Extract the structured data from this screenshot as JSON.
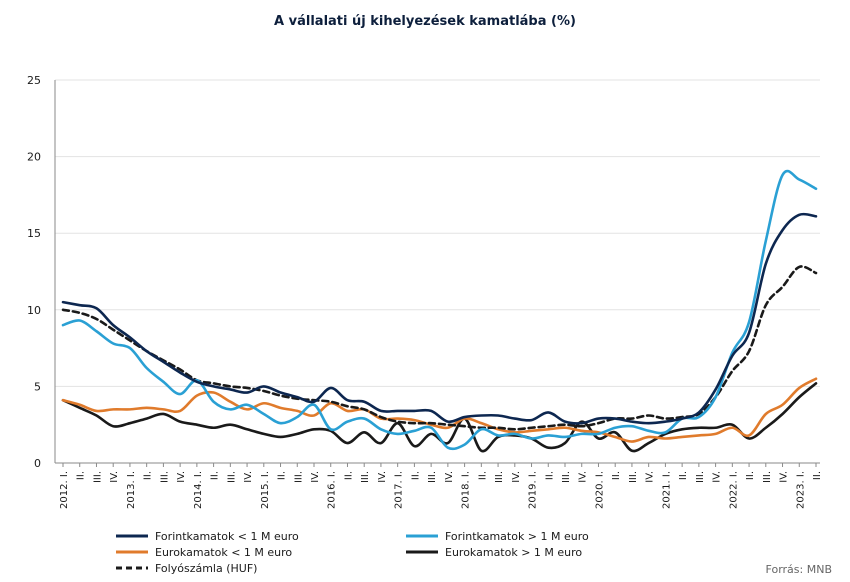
{
  "title": "A vállalati új kihelyezések kamatlába (%)",
  "source": "Forrás: MNB",
  "chart_data": {
    "type": "line",
    "title": "A vállalati új kihelyezések kamatlába (%)",
    "ylim": [
      0,
      25
    ],
    "y_ticks": [
      0,
      5,
      10,
      15,
      20,
      25
    ],
    "grid": true,
    "legend_position": "bottom",
    "x": [
      "2012. I.",
      "II.",
      "III.",
      "IV.",
      "2013. I.",
      "II.",
      "III.",
      "IV.",
      "2014. I.",
      "II.",
      "III.",
      "IV.",
      "2015. I.",
      "II.",
      "III.",
      "IV.",
      "2016. I.",
      "II.",
      "III.",
      "IV.",
      "2017. I.",
      "II.",
      "III.",
      "IV.",
      "2018. I.",
      "II.",
      "III.",
      "IV.",
      "2019. I.",
      "II.",
      "III.",
      "IV.",
      "2020. I.",
      "II.",
      "III.",
      "IV.",
      "2021. I.",
      "II.",
      "III.",
      "IV.",
      "2022. I.",
      "II.",
      "III.",
      "IV.",
      "2023. I.",
      "II."
    ],
    "series": [
      {
        "name": "Forintkamatok < 1 M euro",
        "color": "#0d2750",
        "dash": false,
        "values": [
          10.5,
          10.3,
          10.1,
          9.0,
          8.2,
          7.3,
          6.6,
          5.9,
          5.3,
          5.0,
          4.8,
          4.6,
          5.0,
          4.6,
          4.3,
          4.0,
          4.9,
          4.1,
          4.0,
          3.4,
          3.4,
          3.4,
          3.4,
          2.7,
          3.0,
          3.1,
          3.1,
          2.9,
          2.8,
          3.3,
          2.7,
          2.6,
          2.9,
          2.9,
          2.7,
          2.6,
          2.7,
          2.9,
          3.3,
          4.8,
          7.0,
          8.5,
          13.0,
          15.2,
          16.2,
          16.1
        ]
      },
      {
        "name": "Forintkamatok > 1 M euro",
        "color": "#2aa0d4",
        "dash": false,
        "values": [
          9.0,
          9.3,
          8.6,
          7.8,
          7.5,
          6.2,
          5.3,
          4.5,
          5.4,
          4.0,
          3.5,
          3.8,
          3.2,
          2.6,
          3.0,
          3.8,
          2.2,
          2.7,
          2.9,
          2.2,
          1.9,
          2.1,
          2.3,
          1.0,
          1.2,
          2.2,
          1.8,
          1.9,
          1.6,
          1.8,
          1.7,
          1.9,
          1.9,
          2.3,
          2.4,
          2.1,
          2.0,
          2.9,
          3.0,
          4.3,
          7.2,
          9.2,
          14.5,
          18.8,
          18.5,
          17.9
        ]
      },
      {
        "name": "Eurokamatok < 1 M euro",
        "color": "#e07b2c",
        "dash": false,
        "values": [
          4.1,
          3.8,
          3.4,
          3.5,
          3.5,
          3.6,
          3.5,
          3.4,
          4.4,
          4.6,
          4.0,
          3.5,
          3.9,
          3.6,
          3.4,
          3.1,
          3.9,
          3.4,
          3.5,
          2.9,
          2.9,
          2.8,
          2.5,
          2.3,
          2.9,
          2.6,
          2.2,
          2.0,
          2.1,
          2.2,
          2.3,
          2.1,
          2.0,
          1.7,
          1.4,
          1.7,
          1.6,
          1.7,
          1.8,
          1.9,
          2.3,
          1.8,
          3.2,
          3.8,
          4.9,
          5.5
        ]
      },
      {
        "name": "Eurokamatok > 1 M euro",
        "color": "#1a1a1a",
        "dash": false,
        "values": [
          4.1,
          3.6,
          3.1,
          2.4,
          2.6,
          2.9,
          3.2,
          2.7,
          2.5,
          2.3,
          2.5,
          2.2,
          1.9,
          1.7,
          1.9,
          2.2,
          2.1,
          1.3,
          2.0,
          1.3,
          2.6,
          1.1,
          1.9,
          1.3,
          2.9,
          0.8,
          1.7,
          1.8,
          1.6,
          1.0,
          1.3,
          2.7,
          1.6,
          2.0,
          0.8,
          1.3,
          1.9,
          2.2,
          2.3,
          2.3,
          2.5,
          1.6,
          2.3,
          3.2,
          4.3,
          5.2
        ]
      },
      {
        "name": "Folyószámla (HUF)",
        "color": "#1a1a1a",
        "dash": true,
        "values": [
          10.0,
          9.8,
          9.4,
          8.7,
          8.0,
          7.3,
          6.7,
          6.1,
          5.4,
          5.2,
          5.0,
          4.9,
          4.7,
          4.4,
          4.2,
          4.1,
          4.0,
          3.7,
          3.5,
          3.0,
          2.7,
          2.6,
          2.6,
          2.5,
          2.4,
          2.3,
          2.3,
          2.2,
          2.3,
          2.4,
          2.5,
          2.4,
          2.6,
          2.9,
          2.9,
          3.1,
          2.9,
          3.0,
          3.2,
          4.3,
          6.0,
          7.3,
          10.3,
          11.5,
          12.8,
          12.4
        ]
      }
    ]
  }
}
